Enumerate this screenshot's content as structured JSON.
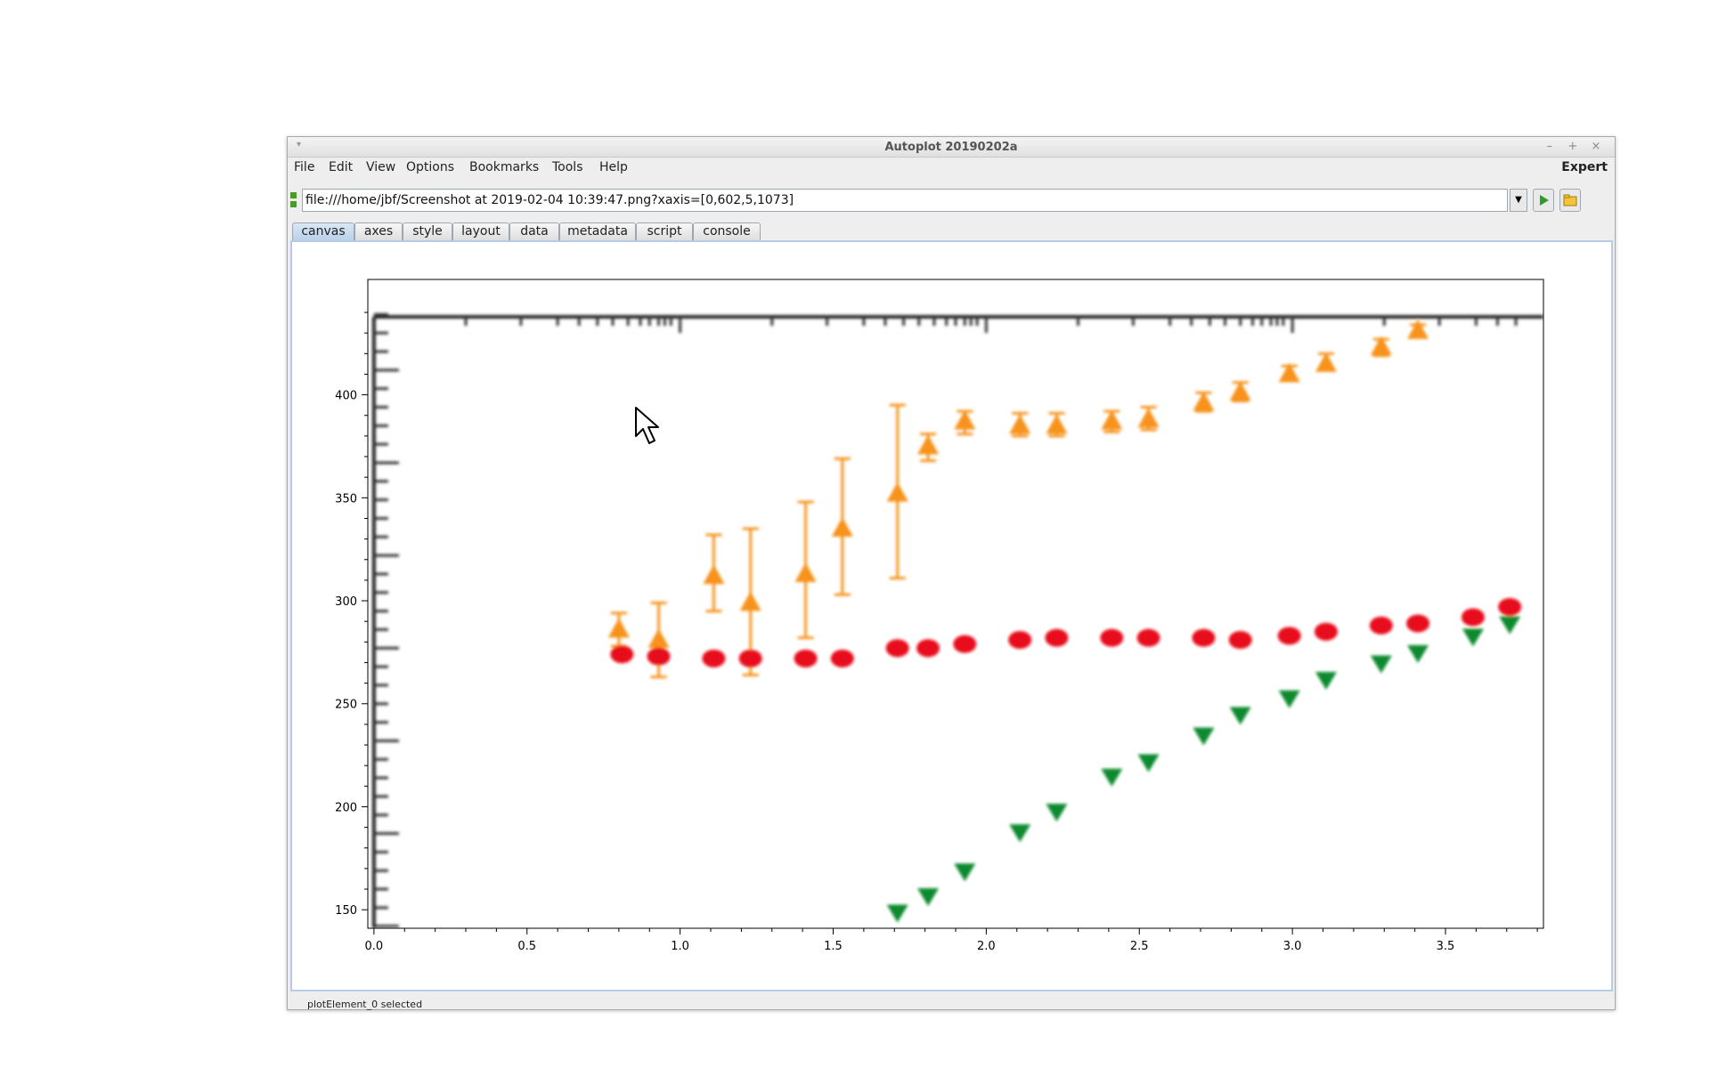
{
  "window": {
    "title": "Autoplot 20190202a"
  },
  "menu": {
    "items": [
      "File",
      "Edit",
      "View",
      "Options",
      "Bookmarks",
      "Tools",
      "Help"
    ],
    "expert": "Expert"
  },
  "url": {
    "value": "file:///home/jbf/Screenshot at 2019-02-04 10:39:47.png?xaxis=[0,602,5,1073]"
  },
  "tabs": [
    "canvas",
    "axes",
    "style",
    "layout",
    "data",
    "metadata",
    "script",
    "console"
  ],
  "active_tab": "canvas",
  "status": "plotElement_0 selected",
  "chart_data": {
    "type": "image",
    "xlim": [
      -0.02,
      3.82
    ],
    "ylim": [
      141,
      456
    ],
    "x_ticks": [
      "0.0",
      "0.5",
      "1.0",
      "1.5",
      "2.0",
      "2.5",
      "3.0",
      "3.5"
    ],
    "y_ticks": [
      "150",
      "200",
      "250",
      "300",
      "350",
      "400"
    ],
    "series": [
      {
        "marker": "triangle-up",
        "color": "#f7931e",
        "points": [
          [
            0.8,
            286,
            294,
            278
          ],
          [
            0.93,
            281,
            299,
            263
          ],
          [
            1.11,
            312,
            332,
            295
          ],
          [
            1.23,
            299,
            335,
            264
          ],
          [
            1.41,
            313,
            348,
            282
          ],
          [
            1.53,
            335,
            369,
            303
          ],
          [
            1.71,
            352,
            395,
            311
          ],
          [
            1.81,
            375,
            381,
            368
          ],
          [
            1.93,
            387,
            392,
            381
          ],
          [
            2.11,
            385,
            391,
            380
          ],
          [
            2.23,
            385,
            391,
            380
          ],
          [
            2.41,
            387,
            392,
            382
          ],
          [
            2.53,
            388,
            394,
            383
          ],
          [
            2.71,
            396,
            401,
            392
          ],
          [
            2.83,
            401,
            406,
            397
          ],
          [
            2.99,
            410,
            414,
            407
          ],
          [
            3.11,
            415,
            420,
            412
          ],
          [
            3.29,
            423,
            427,
            419
          ],
          [
            3.41,
            431,
            434,
            428
          ]
        ]
      },
      {
        "marker": "circle",
        "color": "#e8101c",
        "points": [
          [
            0.81,
            274
          ],
          [
            0.93,
            273
          ],
          [
            1.11,
            272
          ],
          [
            1.23,
            272
          ],
          [
            1.41,
            272
          ],
          [
            1.53,
            272
          ],
          [
            1.71,
            277
          ],
          [
            1.81,
            277
          ],
          [
            1.93,
            279
          ],
          [
            2.11,
            281
          ],
          [
            2.23,
            282
          ],
          [
            2.41,
            282
          ],
          [
            2.53,
            282
          ],
          [
            2.71,
            282
          ],
          [
            2.83,
            281
          ],
          [
            2.99,
            283
          ],
          [
            3.11,
            285
          ],
          [
            3.29,
            288
          ],
          [
            3.41,
            289
          ],
          [
            3.59,
            292
          ],
          [
            3.71,
            297
          ]
        ]
      },
      {
        "marker": "triangle-down",
        "color": "#0c8a2e",
        "points": [
          [
            1.71,
            149
          ],
          [
            1.81,
            157
          ],
          [
            1.93,
            169
          ],
          [
            2.11,
            188
          ],
          [
            2.23,
            198
          ],
          [
            2.41,
            215
          ],
          [
            2.53,
            222
          ],
          [
            2.71,
            235
          ],
          [
            2.83,
            245
          ],
          [
            2.99,
            253
          ],
          [
            3.11,
            262
          ],
          [
            3.29,
            270
          ],
          [
            3.41,
            275
          ],
          [
            3.59,
            283
          ],
          [
            3.71,
            289
          ]
        ]
      }
    ]
  }
}
